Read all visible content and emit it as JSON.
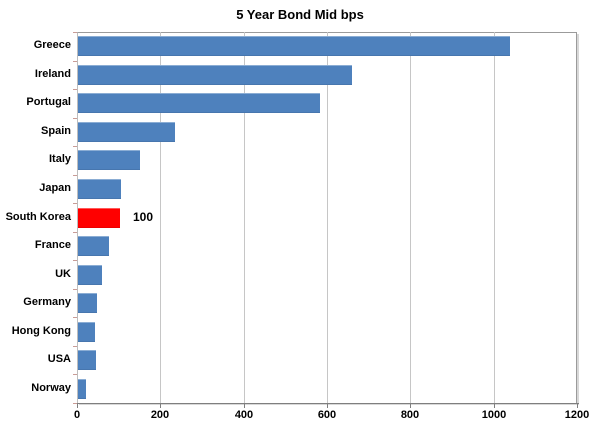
{
  "chart_data": {
    "type": "bar",
    "orientation": "horizontal",
    "title": "5 Year Bond Mid bps",
    "categories": [
      "Greece",
      "Ireland",
      "Portugal",
      "Spain",
      "Italy",
      "Japan",
      "South Korea",
      "France",
      "UK",
      "Germany",
      "Hong Kong",
      "USA",
      "Norway"
    ],
    "values": [
      1037,
      658,
      580,
      232,
      149,
      102,
      100,
      74,
      57,
      46,
      41,
      43,
      19
    ],
    "xlim": [
      0,
      1200
    ],
    "xticks": [
      0,
      200,
      400,
      600,
      800,
      1000,
      1200
    ],
    "xtick_labels": [
      "0",
      "200",
      "400",
      "600",
      "800",
      "1000",
      "1200"
    ],
    "grid": "vertical-gridlines-on",
    "legend": "none",
    "highlight": {
      "category": "South Korea",
      "annotation": "100"
    },
    "colors": {
      "bar": "#4E81BD",
      "highlight_bar": "#FF0000",
      "gridline": "#C6C6C6",
      "axis": "#7F7F7F",
      "text": "#000000",
      "background": "#FFFFFF"
    }
  }
}
